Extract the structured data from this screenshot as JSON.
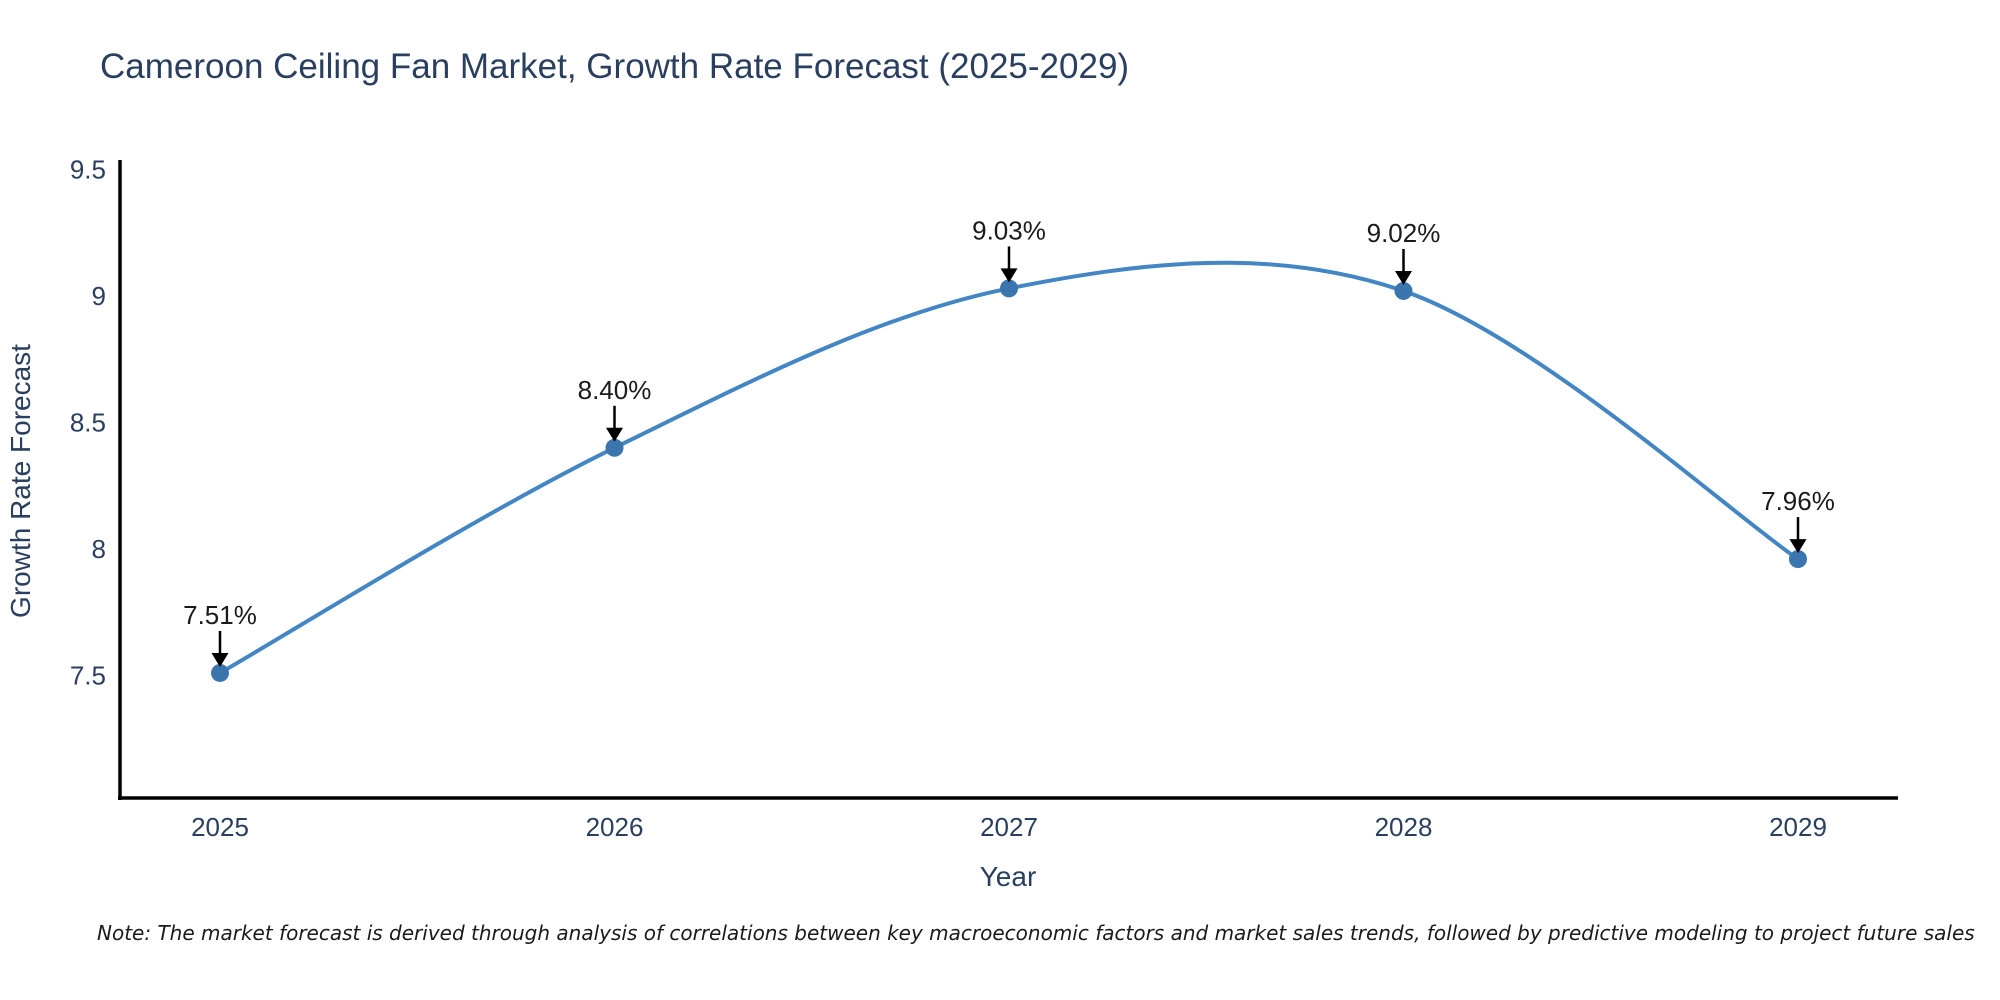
{
  "note": "Note: The market forecast is derived through analysis of correlations between key macroeconomic factors and market sales trends, followed by predictive modeling to project future sales",
  "chart_data": {
    "type": "line",
    "title": "Cameroon Ceiling Fan Market, Growth Rate Forecast (2025-2029)",
    "xlabel": "Year",
    "ylabel": "Growth Rate Forecast",
    "x": [
      2025,
      2026,
      2027,
      2028,
      2029
    ],
    "values": [
      7.51,
      8.4,
      9.03,
      9.02,
      7.96
    ],
    "point_labels": [
      "7.51%",
      "8.40%",
      "9.03%",
      "9.02%",
      "7.96%"
    ],
    "yticks": [
      7.5,
      8,
      8.5,
      9,
      9.5
    ],
    "ytick_labels": [
      "7.5",
      "8",
      "8.5",
      "9",
      "9.5"
    ],
    "ylim": [
      7.0,
      9.55
    ],
    "line_shape": "spline",
    "grid": false,
    "legend": "none",
    "markers": true,
    "annotation_arrows": true,
    "colors": {
      "line": "#4486c3",
      "marker": "#3a75ad",
      "text": "#2a3f5f",
      "axis": "#000000",
      "annotation": "#000000",
      "background": "#ffffff"
    }
  }
}
